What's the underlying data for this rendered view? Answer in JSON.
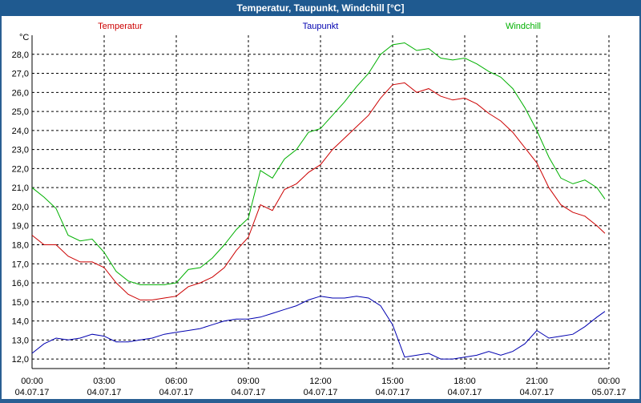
{
  "window": {
    "title": "Temperatur, Taupunkt, Windchill [°C]"
  },
  "colors": {
    "frame": "#2a5f93",
    "grid": "#000000",
    "temperatur": "#cc0000",
    "taupunkt": "#0000b0",
    "windchill": "#00b000"
  },
  "chart_data": {
    "type": "line",
    "title": "Temperatur, Taupunkt, Windchill [°C]",
    "ylabel": "°C",
    "xlabel": "",
    "ylim": [
      11.5,
      29.0
    ],
    "y_ticks": [
      "12,0",
      "13,0",
      "14,0",
      "15,0",
      "16,0",
      "17,0",
      "18,0",
      "19,0",
      "20,0",
      "21,0",
      "22,0",
      "23,0",
      "24,0",
      "25,0",
      "26,0",
      "27,0",
      "28,0"
    ],
    "x_ticks": [
      {
        "time": "00:00",
        "date": "04.07.17"
      },
      {
        "time": "03:00",
        "date": "04.07.17"
      },
      {
        "time": "06:00",
        "date": "04.07.17"
      },
      {
        "time": "09:00",
        "date": "04.07.17"
      },
      {
        "time": "12:00",
        "date": "04.07.17"
      },
      {
        "time": "15:00",
        "date": "04.07.17"
      },
      {
        "time": "18:00",
        "date": "04.07.17"
      },
      {
        "time": "21:00",
        "date": "04.07.17"
      },
      {
        "time": "00:00",
        "date": "05.07.17"
      }
    ],
    "grid": true,
    "legend_position": "top",
    "series": [
      {
        "name": "Temperatur",
        "color": "#cc0000",
        "points": [
          [
            "04.07.17 00:00",
            18.5
          ],
          [
            "04.07.17 00:30",
            18.0
          ],
          [
            "04.07.17 01:00",
            18.0
          ],
          [
            "04.07.17 01:30",
            17.4
          ],
          [
            "04.07.17 02:00",
            17.1
          ],
          [
            "04.07.17 02:30",
            17.1
          ],
          [
            "04.07.17 03:00",
            16.8
          ],
          [
            "04.07.17 03:30",
            16.0
          ],
          [
            "04.07.17 04:00",
            15.4
          ],
          [
            "04.07.17 04:30",
            15.1
          ],
          [
            "04.07.17 05:00",
            15.1
          ],
          [
            "04.07.17 05:30",
            15.2
          ],
          [
            "04.07.17 06:00",
            15.3
          ],
          [
            "04.07.17 06:30",
            15.8
          ],
          [
            "04.07.17 07:00",
            16.0
          ],
          [
            "04.07.17 07:30",
            16.3
          ],
          [
            "04.07.17 08:00",
            16.8
          ],
          [
            "04.07.17 08:30",
            17.7
          ],
          [
            "04.07.17 09:00",
            18.4
          ],
          [
            "04.07.17 09:30",
            20.1
          ],
          [
            "04.07.17 10:00",
            19.8
          ],
          [
            "04.07.17 10:30",
            20.9
          ],
          [
            "04.07.17 11:00",
            21.2
          ],
          [
            "04.07.17 11:30",
            21.8
          ],
          [
            "04.07.17 12:00",
            22.2
          ],
          [
            "04.07.17 12:30",
            23.0
          ],
          [
            "04.07.17 13:00",
            23.6
          ],
          [
            "04.07.17 13:30",
            24.2
          ],
          [
            "04.07.17 14:00",
            24.8
          ],
          [
            "04.07.17 14:30",
            25.7
          ],
          [
            "04.07.17 15:00",
            26.4
          ],
          [
            "04.07.17 15:30",
            26.5
          ],
          [
            "04.07.17 16:00",
            26.0
          ],
          [
            "04.07.17 16:30",
            26.2
          ],
          [
            "04.07.17 17:00",
            25.8
          ],
          [
            "04.07.17 17:30",
            25.6
          ],
          [
            "04.07.17 18:00",
            25.7
          ],
          [
            "04.07.17 18:30",
            25.4
          ],
          [
            "04.07.17 19:00",
            24.9
          ],
          [
            "04.07.17 19:30",
            24.5
          ],
          [
            "04.07.17 20:00",
            23.9
          ],
          [
            "04.07.17 20:30",
            23.1
          ],
          [
            "04.07.17 21:00",
            22.3
          ],
          [
            "04.07.17 21:30",
            21.0
          ],
          [
            "04.07.17 22:00",
            20.1
          ],
          [
            "04.07.17 22:30",
            19.7
          ],
          [
            "04.07.17 23:00",
            19.5
          ],
          [
            "04.07.17 23:30",
            19.0
          ],
          [
            "04.07.17 23:50",
            18.6
          ]
        ]
      },
      {
        "name": "Taupunkt",
        "color": "#0000b0",
        "points": [
          [
            "04.07.17 00:00",
            12.3
          ],
          [
            "04.07.17 00:30",
            12.8
          ],
          [
            "04.07.17 01:00",
            13.1
          ],
          [
            "04.07.17 01:30",
            13.0
          ],
          [
            "04.07.17 02:00",
            13.1
          ],
          [
            "04.07.17 02:30",
            13.3
          ],
          [
            "04.07.17 03:00",
            13.2
          ],
          [
            "04.07.17 03:30",
            12.9
          ],
          [
            "04.07.17 04:00",
            12.9
          ],
          [
            "04.07.17 04:30",
            13.0
          ],
          [
            "04.07.17 05:00",
            13.1
          ],
          [
            "04.07.17 05:30",
            13.3
          ],
          [
            "04.07.17 06:00",
            13.4
          ],
          [
            "04.07.17 06:30",
            13.5
          ],
          [
            "04.07.17 07:00",
            13.6
          ],
          [
            "04.07.17 07:30",
            13.8
          ],
          [
            "04.07.17 08:00",
            14.0
          ],
          [
            "04.07.17 08:30",
            14.1
          ],
          [
            "04.07.17 09:00",
            14.1
          ],
          [
            "04.07.17 09:30",
            14.2
          ],
          [
            "04.07.17 10:00",
            14.4
          ],
          [
            "04.07.17 10:30",
            14.6
          ],
          [
            "04.07.17 11:00",
            14.8
          ],
          [
            "04.07.17 11:30",
            15.1
          ],
          [
            "04.07.17 12:00",
            15.3
          ],
          [
            "04.07.17 12:30",
            15.2
          ],
          [
            "04.07.17 13:00",
            15.2
          ],
          [
            "04.07.17 13:30",
            15.3
          ],
          [
            "04.07.17 14:00",
            15.2
          ],
          [
            "04.07.17 14:30",
            14.8
          ],
          [
            "04.07.17 15:00",
            13.8
          ],
          [
            "04.07.17 15:30",
            12.1
          ],
          [
            "04.07.17 16:00",
            12.2
          ],
          [
            "04.07.17 16:30",
            12.3
          ],
          [
            "04.07.17 17:00",
            12.0
          ],
          [
            "04.07.17 17:30",
            12.0
          ],
          [
            "04.07.17 18:00",
            12.1
          ],
          [
            "04.07.17 18:30",
            12.2
          ],
          [
            "04.07.17 19:00",
            12.4
          ],
          [
            "04.07.17 19:30",
            12.2
          ],
          [
            "04.07.17 20:00",
            12.4
          ],
          [
            "04.07.17 20:30",
            12.8
          ],
          [
            "04.07.17 21:00",
            13.5
          ],
          [
            "04.07.17 21:30",
            13.1
          ],
          [
            "04.07.17 22:00",
            13.2
          ],
          [
            "04.07.17 22:30",
            13.3
          ],
          [
            "04.07.17 23:00",
            13.7
          ],
          [
            "04.07.17 23:30",
            14.2
          ],
          [
            "04.07.17 23:50",
            14.5
          ]
        ]
      },
      {
        "name": "Windchill",
        "color": "#00b000",
        "points": [
          [
            "04.07.17 00:00",
            21.0
          ],
          [
            "04.07.17 00:30",
            20.5
          ],
          [
            "04.07.17 01:00",
            19.9
          ],
          [
            "04.07.17 01:30",
            18.5
          ],
          [
            "04.07.17 02:00",
            18.2
          ],
          [
            "04.07.17 02:30",
            18.3
          ],
          [
            "04.07.17 03:00",
            17.6
          ],
          [
            "04.07.17 03:30",
            16.6
          ],
          [
            "04.07.17 04:00",
            16.1
          ],
          [
            "04.07.17 04:30",
            15.9
          ],
          [
            "04.07.17 05:00",
            15.9
          ],
          [
            "04.07.17 05:30",
            15.9
          ],
          [
            "04.07.17 06:00",
            16.0
          ],
          [
            "04.07.17 06:30",
            16.7
          ],
          [
            "04.07.17 07:00",
            16.8
          ],
          [
            "04.07.17 07:30",
            17.3
          ],
          [
            "04.07.17 08:00",
            18.0
          ],
          [
            "04.07.17 08:30",
            18.8
          ],
          [
            "04.07.17 09:00",
            19.4
          ],
          [
            "04.07.17 09:30",
            21.9
          ],
          [
            "04.07.17 10:00",
            21.5
          ],
          [
            "04.07.17 10:30",
            22.5
          ],
          [
            "04.07.17 11:00",
            23.0
          ],
          [
            "04.07.17 11:30",
            23.9
          ],
          [
            "04.07.17 12:00",
            24.1
          ],
          [
            "04.07.17 12:30",
            24.8
          ],
          [
            "04.07.17 13:00",
            25.5
          ],
          [
            "04.07.17 13:30",
            26.3
          ],
          [
            "04.07.17 14:00",
            27.0
          ],
          [
            "04.07.17 14:30",
            28.0
          ],
          [
            "04.07.17 15:00",
            28.5
          ],
          [
            "04.07.17 15:30",
            28.6
          ],
          [
            "04.07.17 16:00",
            28.2
          ],
          [
            "04.07.17 16:30",
            28.3
          ],
          [
            "04.07.17 17:00",
            27.8
          ],
          [
            "04.07.17 17:30",
            27.7
          ],
          [
            "04.07.17 18:00",
            27.8
          ],
          [
            "04.07.17 18:30",
            27.5
          ],
          [
            "04.07.17 19:00",
            27.1
          ],
          [
            "04.07.17 19:30",
            26.8
          ],
          [
            "04.07.17 20:00",
            26.2
          ],
          [
            "04.07.17 20:30",
            25.2
          ],
          [
            "04.07.17 21:00",
            24.0
          ],
          [
            "04.07.17 21:30",
            22.6
          ],
          [
            "04.07.17 22:00",
            21.5
          ],
          [
            "04.07.17 22:30",
            21.2
          ],
          [
            "04.07.17 23:00",
            21.4
          ],
          [
            "04.07.17 23:30",
            21.0
          ],
          [
            "04.07.17 23:50",
            20.4
          ]
        ]
      }
    ]
  }
}
